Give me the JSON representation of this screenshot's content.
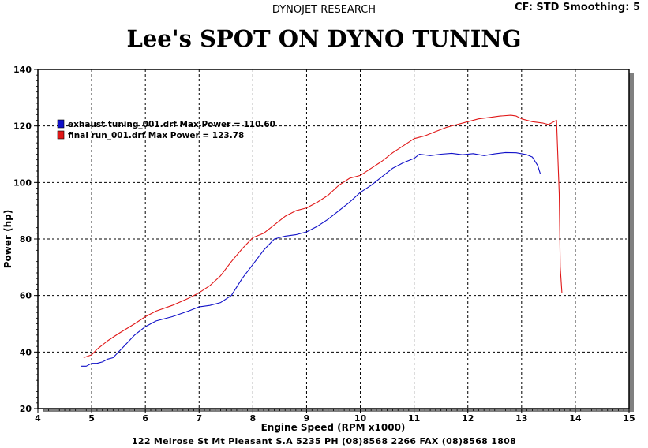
{
  "header": {
    "company": "DYNOJET RESEARCH",
    "settings": "CF: STD  Smoothing: 5"
  },
  "footer": {
    "address": "122 Melrose St  Mt Pleasant  S.A  5235 PH (08)8568 2266 FAX (08)8568 1808"
  },
  "colors": {
    "series1": "#1010c8",
    "series2": "#e01818",
    "grid": "#000000",
    "background": "#ffffff"
  },
  "chart_data": {
    "type": "line",
    "title": "Lee's SPOT ON DYNO TUNING",
    "xlabel": "Engine Speed (RPM x1000)",
    "ylabel": "Power (hp)",
    "xlim": [
      4,
      15
    ],
    "ylim": [
      20,
      140
    ],
    "xticks": [
      "4",
      "5",
      "6",
      "7",
      "8",
      "9",
      "10",
      "11",
      "12",
      "13",
      "14",
      "15"
    ],
    "yticks": [
      "20",
      "40",
      "60",
      "80",
      "100",
      "120",
      "140"
    ],
    "grid": true,
    "legend_position": "top-left",
    "series": [
      {
        "name": "exhaust tuning_001.drf Max Power = 110.60",
        "color": "#1010c8",
        "x": [
          4.8,
          4.9,
          5.0,
          5.1,
          5.2,
          5.3,
          5.4,
          5.5,
          5.6,
          5.8,
          6.0,
          6.2,
          6.5,
          6.8,
          7.0,
          7.2,
          7.4,
          7.6,
          7.8,
          8.0,
          8.2,
          8.4,
          8.6,
          8.8,
          9.0,
          9.2,
          9.4,
          9.6,
          9.8,
          10.0,
          10.2,
          10.4,
          10.6,
          10.8,
          11.0,
          11.1,
          11.3,
          11.5,
          11.7,
          11.9,
          12.1,
          12.3,
          12.5,
          12.7,
          12.9,
          13.1,
          13.2,
          13.3,
          13.35
        ],
        "y": [
          35,
          35,
          36,
          36,
          36.5,
          37.5,
          38,
          40,
          42,
          46,
          49,
          51,
          52.5,
          54.5,
          56,
          56.5,
          57.5,
          60,
          66,
          71,
          76,
          80,
          81,
          81.5,
          82.5,
          84.5,
          87,
          90,
          93,
          96.5,
          99,
          102,
          105,
          107,
          108.5,
          110,
          109.5,
          110,
          110.3,
          109.8,
          110.2,
          109.5,
          110.1,
          110.6,
          110.5,
          109.8,
          109,
          106,
          103
        ]
      },
      {
        "name": "final run_001.drf Max Power = 123.78",
        "color": "#e01818",
        "x": [
          4.85,
          5.0,
          5.1,
          5.3,
          5.5,
          5.8,
          6.0,
          6.2,
          6.5,
          6.8,
          7.0,
          7.2,
          7.4,
          7.6,
          7.8,
          8.0,
          8.2,
          8.4,
          8.6,
          8.8,
          9.0,
          9.2,
          9.4,
          9.6,
          9.8,
          10.0,
          10.2,
          10.4,
          10.6,
          10.8,
          11.0,
          11.2,
          11.4,
          11.6,
          11.8,
          12.0,
          12.2,
          12.4,
          12.6,
          12.8,
          12.9,
          13.0,
          13.2,
          13.4,
          13.5,
          13.6,
          13.65,
          13.7,
          13.72,
          13.75
        ],
        "y": [
          38,
          39,
          41,
          44,
          46.5,
          50,
          52.5,
          54.5,
          56.5,
          59,
          61,
          63.5,
          67,
          72,
          76.5,
          80.5,
          82,
          85,
          88,
          90,
          91,
          93,
          95.5,
          99,
          101.5,
          102.5,
          105,
          107.5,
          110.5,
          113,
          115.5,
          116.5,
          118,
          119.5,
          120.5,
          121.5,
          122.5,
          123,
          123.5,
          123.78,
          123.5,
          122.5,
          121.5,
          121,
          120.5,
          121.5,
          122,
          96,
          70,
          61
        ]
      }
    ]
  }
}
